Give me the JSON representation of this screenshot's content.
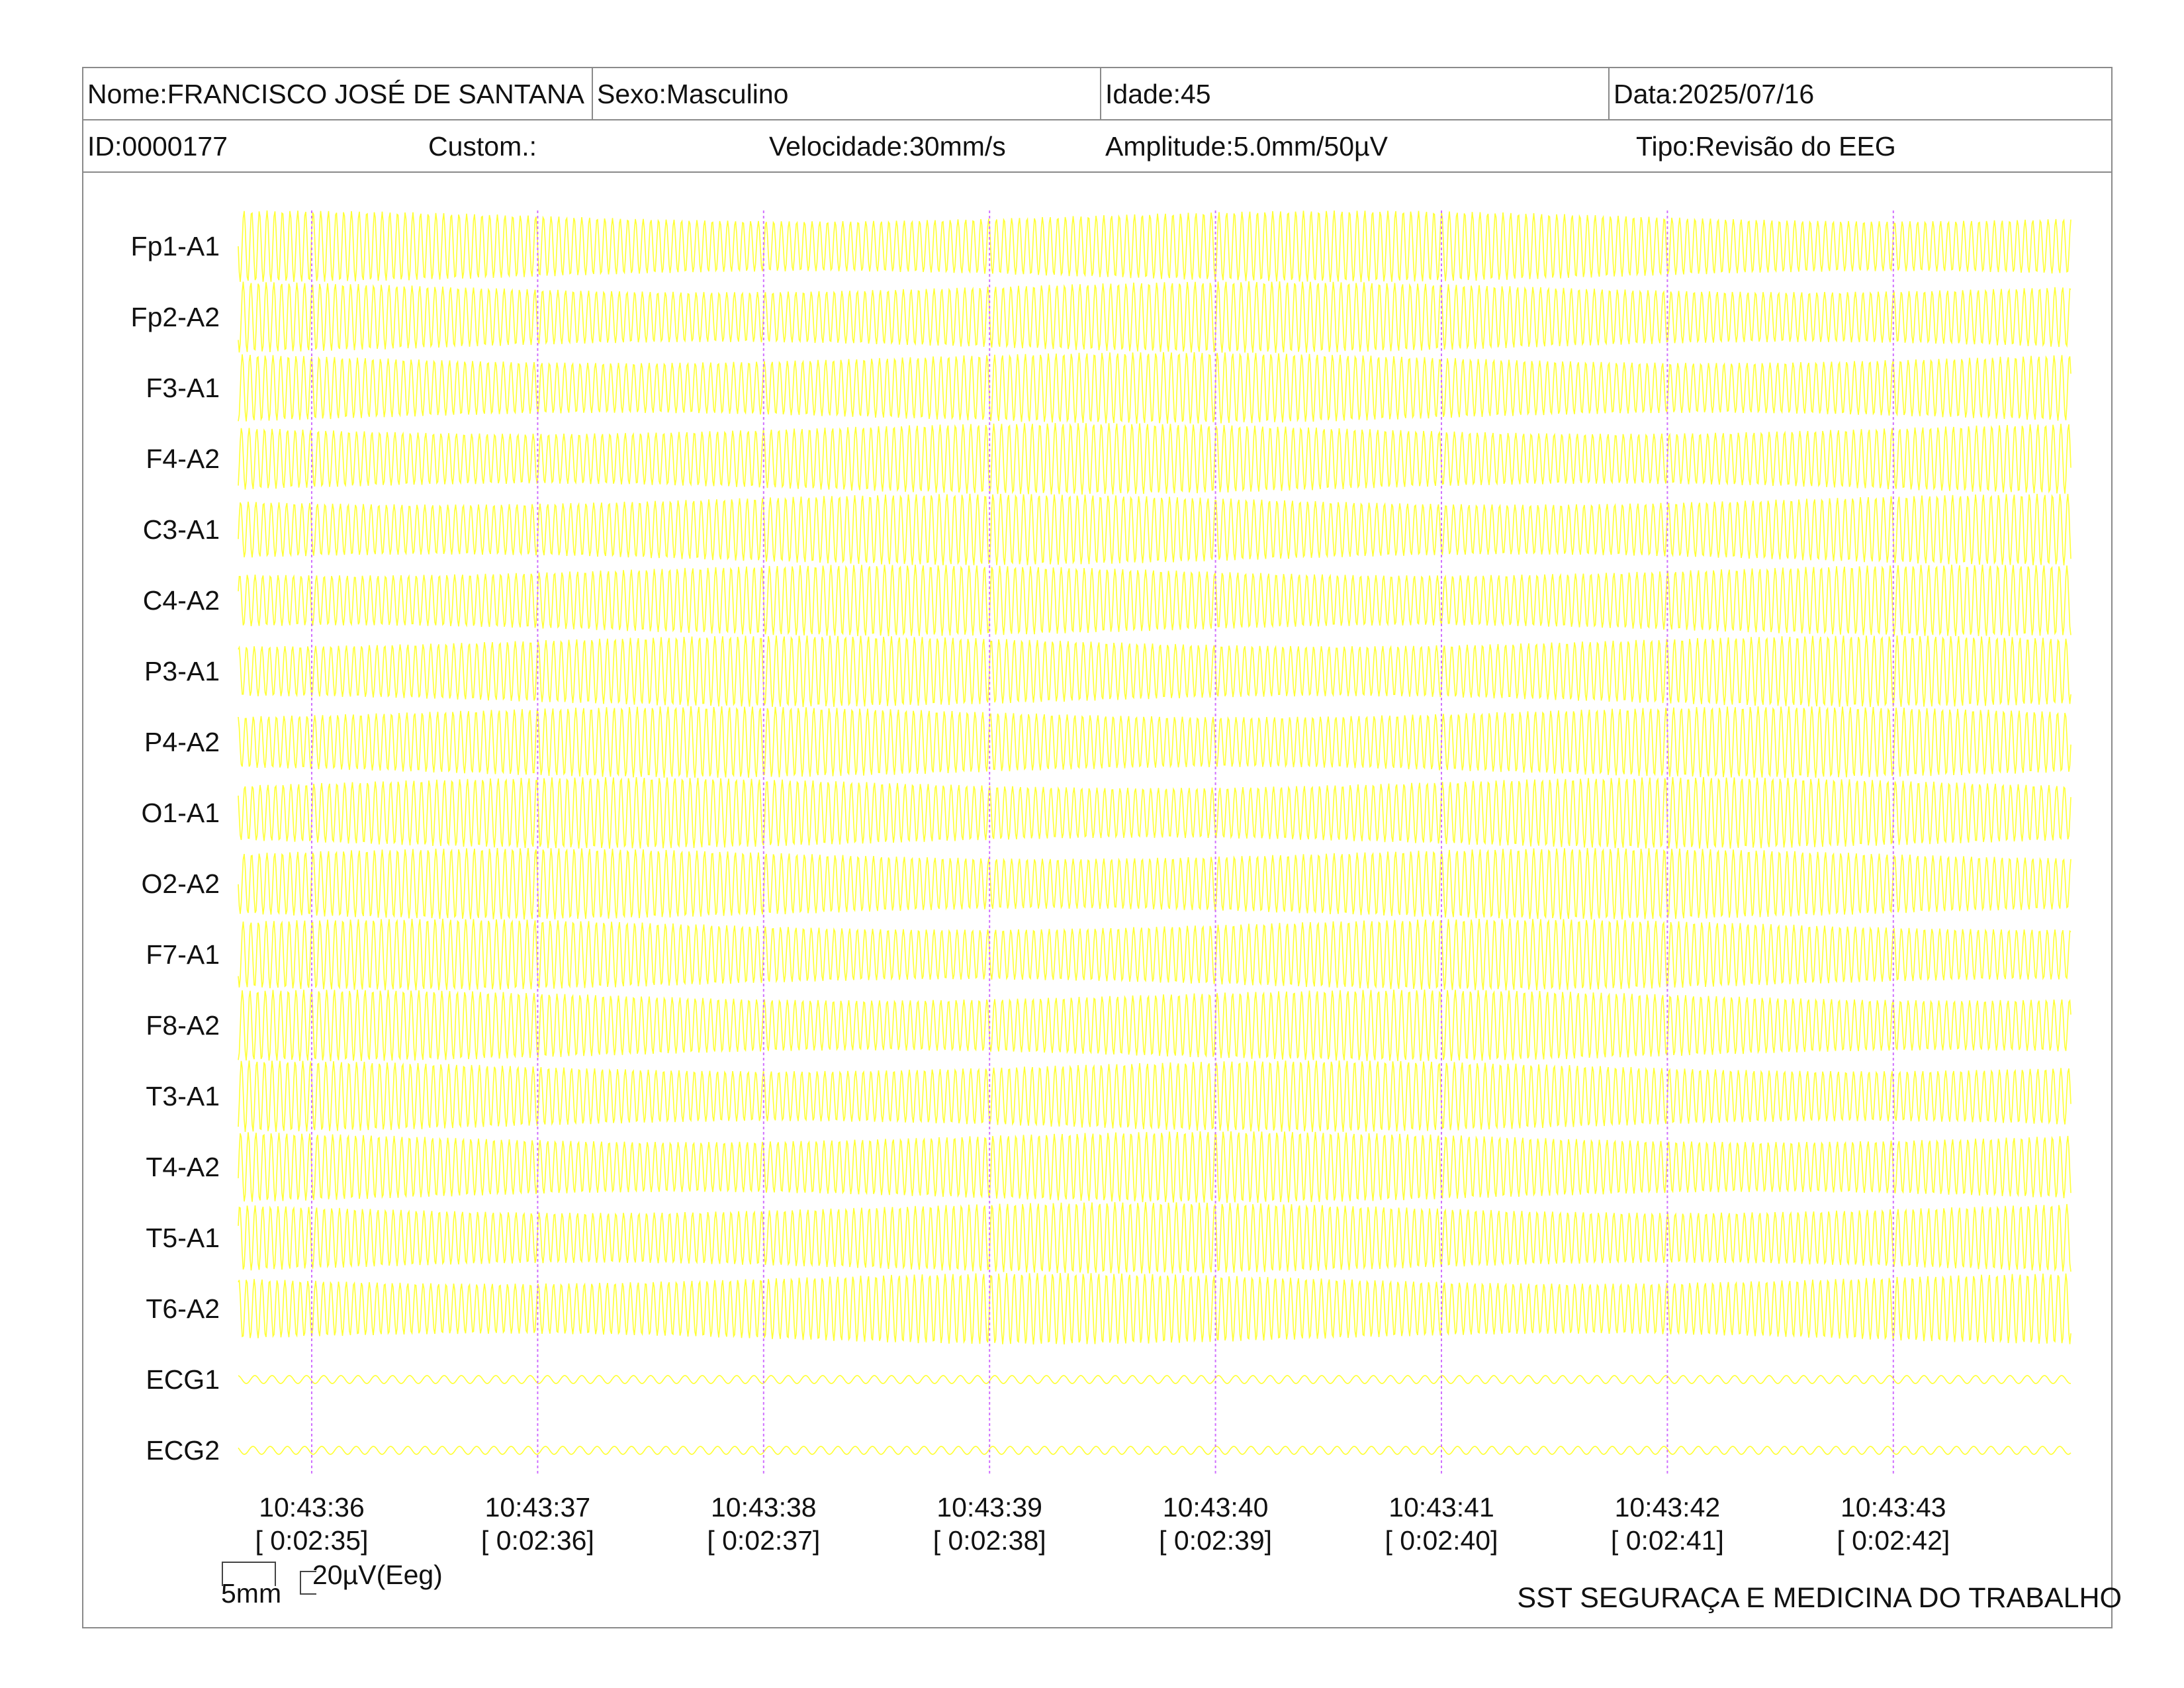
{
  "header": {
    "nome": "Nome:FRANCISCO JOSÉ DE SANTANA",
    "sexo": "Sexo:Masculino",
    "idade": "Idade:45",
    "data": "Data:2025/07/16",
    "id": "ID:0000177",
    "custom": "Custom.:",
    "velocidade": "Velocidade:30mm/s",
    "amplitude": "Amplitude:5.0mm/50µV",
    "tipo": "Tipo:Revisão do EEG"
  },
  "channels": [
    "Fp1-A1",
    "Fp2-A2",
    "F3-A1",
    "F4-A2",
    "C3-A1",
    "C4-A2",
    "P3-A1",
    "P4-A2",
    "O1-A1",
    "O2-A2",
    "F7-A1",
    "F8-A2",
    "T3-A1",
    "T4-A2",
    "T5-A1",
    "T6-A2",
    "ECG1",
    "ECG2"
  ],
  "time_marks": [
    {
      "clock": "10:43:36",
      "elapsed": "[ 0:02:35]"
    },
    {
      "clock": "10:43:37",
      "elapsed": "[ 0:02:36]"
    },
    {
      "clock": "10:43:38",
      "elapsed": "[ 0:02:37]"
    },
    {
      "clock": "10:43:39",
      "elapsed": "[ 0:02:38]"
    },
    {
      "clock": "10:43:40",
      "elapsed": "[ 0:02:39]"
    },
    {
      "clock": "10:43:41",
      "elapsed": "[ 0:02:40]"
    },
    {
      "clock": "10:43:42",
      "elapsed": "[ 0:02:41]"
    },
    {
      "clock": "10:43:43",
      "elapsed": "[ 0:02:42]"
    }
  ],
  "scale": {
    "time": "5mm",
    "amplitude": "20µV(Eeg)"
  },
  "footer": "SST SEGURAÇA E MEDICINA DO TRABALHO",
  "colors": {
    "trace": "#ffff33",
    "marker": "#d070ff",
    "border": "#8a8a8a"
  }
}
